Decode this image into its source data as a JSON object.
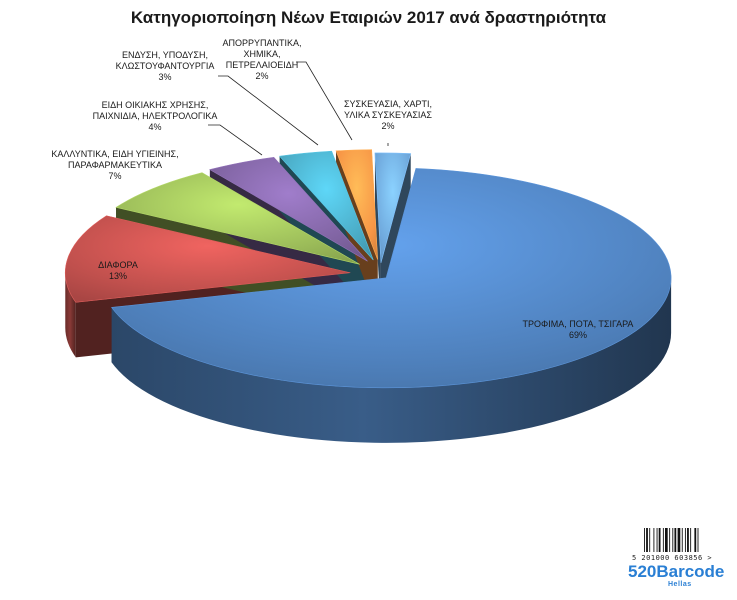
{
  "chart_data": {
    "type": "pie",
    "title": "Κατηγοριοποίηση Νέων Εταιριών 2017 ανά δραστηριότητα",
    "slices": [
      {
        "label": [
          "ΤΡΟΦΙΜΑ, ΠΟΤΑ, ΤΣΙΓΑΡΑ"
        ],
        "pct": "69%",
        "value": 69,
        "color": "#4f81bd"
      },
      {
        "label": [
          "ΔΙΑΦΟΡΑ"
        ],
        "pct": "13%",
        "value": 13,
        "color": "#c0504d"
      },
      {
        "label": [
          "ΚΑΛΛΥΝΤΙΚΑ, ΕΙΔΗ ΥΓΙΕΙΝΗΣ,",
          "ΠΑΡΑΦΑΡΜΑΚΕΥΤΙΚΑ"
        ],
        "pct": "7%",
        "value": 7,
        "color": "#9bbb59"
      },
      {
        "label": [
          "ΕΙΔΗ ΟΙΚΙΑΚΗΣ ΧΡΗΣΗΣ,",
          "ΠΑΙΧΝΙΔΙΑ, ΗΛΕΚΤΡΟΛΟΓΙΚΑ"
        ],
        "pct": "4%",
        "value": 4,
        "color": "#8064a2"
      },
      {
        "label": [
          "ΕΝΔΥΣΗ, ΥΠΟΔΥΣΗ,",
          "ΚΛΩΣΤΟΥΦΑΝΤΟΥΡΓΙΑ"
        ],
        "pct": "3%",
        "value": 3,
        "color": "#4bacc6"
      },
      {
        "label": [
          "ΑΠΟΡΡΥΠΑΝΤΙΚΑ,",
          "ΧΗΜΙΚΑ,",
          "ΠΕΤΡΕΛΑΙΟΕΙΔΗ"
        ],
        "pct": "2%",
        "value": 2,
        "color": "#f79646"
      },
      {
        "label": [
          "ΣΥΣΚΕΥΑΣΙΑ, ΧΑΡΤΙ,",
          "ΥΛΙΚΑ ΣΥΣΚΕΥΑΣΙΑΣ"
        ],
        "pct": "2%",
        "value": 2,
        "color": "#6fa8dc"
      }
    ],
    "legend": "none",
    "style": "3d-exploded-pie"
  },
  "watermark": {
    "barcode_digits": "5 201000 603856 >",
    "brand": "520Barcode",
    "sub": "Hellas"
  }
}
